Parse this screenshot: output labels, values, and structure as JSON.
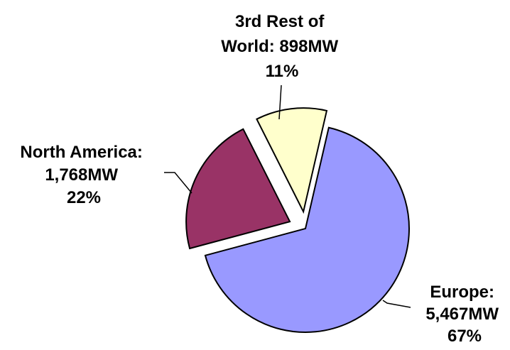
{
  "chart_data": {
    "type": "pie",
    "slices": [
      {
        "name": "Europe",
        "label_lines": [
          "Europe:",
          "5,467MW",
          "67%"
        ],
        "value": 5467,
        "percent": 67,
        "color": "#9999ff"
      },
      {
        "name": "North America",
        "label_lines": [
          "North America:",
          "1,768MW",
          "22%"
        ],
        "value": 1768,
        "percent": 22,
        "color": "#993366"
      },
      {
        "name": "3rd Rest of World",
        "label_lines": [
          "3rd Rest of",
          "World: 898MW",
          "11%"
        ],
        "value": 898,
        "percent": 11,
        "color": "#ffffcc"
      }
    ],
    "outline_color": "#000000",
    "exploded": [
      "North America",
      "3rd Rest of World"
    ]
  }
}
